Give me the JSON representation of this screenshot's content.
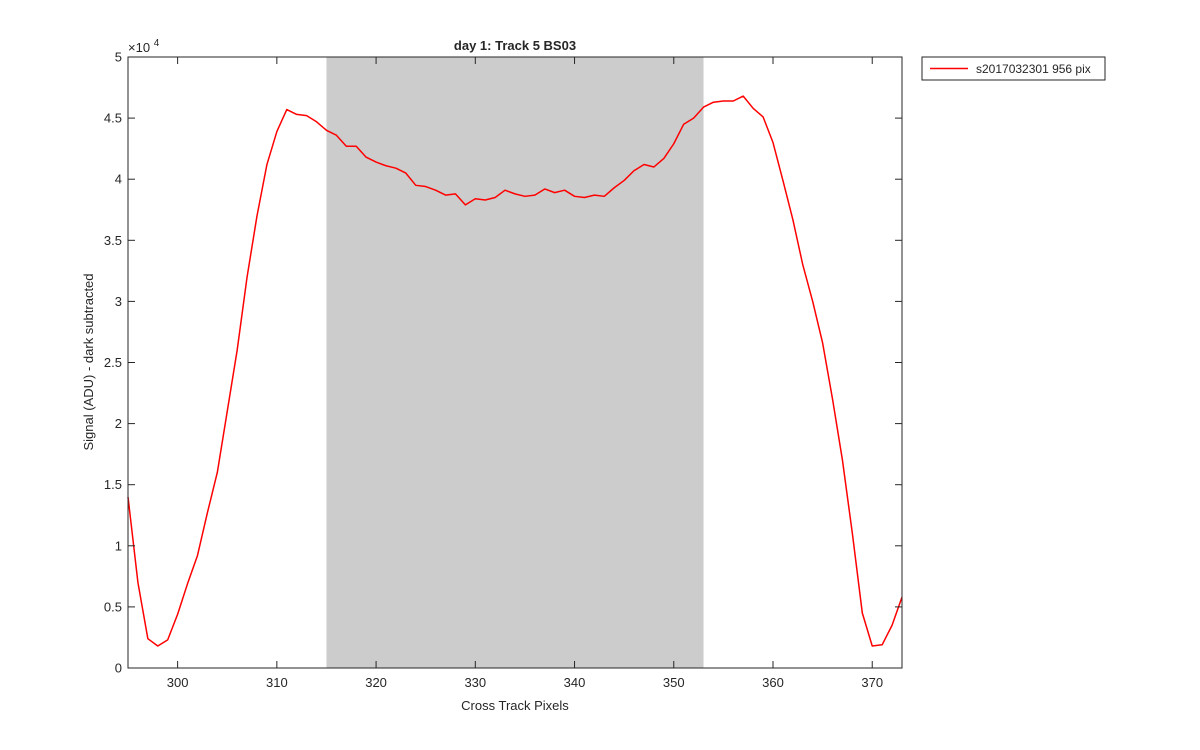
{
  "chart_data": {
    "type": "line",
    "title": "day 1: Track 5  BS03",
    "xlabel": "Cross Track Pixels",
    "ylabel": "Signal (ADU) - dark subtracted",
    "exponent_label": "×10",
    "exponent_power": "4",
    "xlim": [
      295,
      373
    ],
    "ylim": [
      0,
      50000
    ],
    "x_ticks": [
      300,
      310,
      320,
      330,
      340,
      350,
      360,
      370
    ],
    "y_ticks": [
      0,
      5000,
      10000,
      15000,
      20000,
      25000,
      30000,
      35000,
      40000,
      45000,
      50000
    ],
    "y_tick_labels": [
      "0",
      "0.5",
      "1",
      "1.5",
      "2",
      "2.5",
      "3",
      "3.5",
      "4",
      "4.5",
      "5"
    ],
    "x_tick_labels": [
      "300",
      "310",
      "320",
      "330",
      "340",
      "350",
      "360",
      "370"
    ],
    "grid": false,
    "legend_position": "outside-top-right",
    "shaded_region": {
      "x_start": 315,
      "x_end": 353,
      "color": "#cccccc"
    },
    "series": [
      {
        "name": "s2017032301 956 pix",
        "color": "#ff0000",
        "x": [
          295,
          296,
          297,
          298,
          299,
          300,
          301,
          302,
          303,
          304,
          305,
          306,
          307,
          308,
          309,
          310,
          311,
          312,
          313,
          314,
          315,
          316,
          317,
          318,
          319,
          320,
          321,
          322,
          323,
          324,
          325,
          326,
          327,
          328,
          329,
          330,
          331,
          332,
          333,
          334,
          335,
          336,
          337,
          338,
          339,
          340,
          341,
          342,
          343,
          344,
          345,
          346,
          347,
          348,
          349,
          350,
          351,
          352,
          353,
          354,
          355,
          356,
          357,
          358,
          359,
          360,
          361,
          362,
          363,
          364,
          365,
          366,
          367,
          368,
          369,
          370,
          371,
          372,
          373
        ],
        "y": [
          14000,
          7000,
          2400,
          1800,
          2300,
          4400,
          6900,
          9200,
          12700,
          16000,
          21000,
          26000,
          32000,
          37000,
          41200,
          43900,
          45700,
          45300,
          45200,
          44700,
          44000,
          43600,
          42700,
          42700,
          41800,
          41400,
          41100,
          40900,
          40500,
          39500,
          39400,
          39100,
          38700,
          38800,
          37900,
          38400,
          38300,
          38500,
          39100,
          38800,
          38600,
          38700,
          39200,
          38900,
          39100,
          38600,
          38500,
          38700,
          38600,
          39300,
          39900,
          40700,
          41200,
          41000,
          41700,
          42900,
          44500,
          45000,
          45900,
          46300,
          46400,
          46400,
          46800,
          45800,
          45100,
          43000,
          39900,
          36700,
          33000,
          30000,
          26600,
          22000,
          17000,
          11000,
          4500,
          1800,
          1900,
          3500,
          5800
        ]
      }
    ]
  }
}
